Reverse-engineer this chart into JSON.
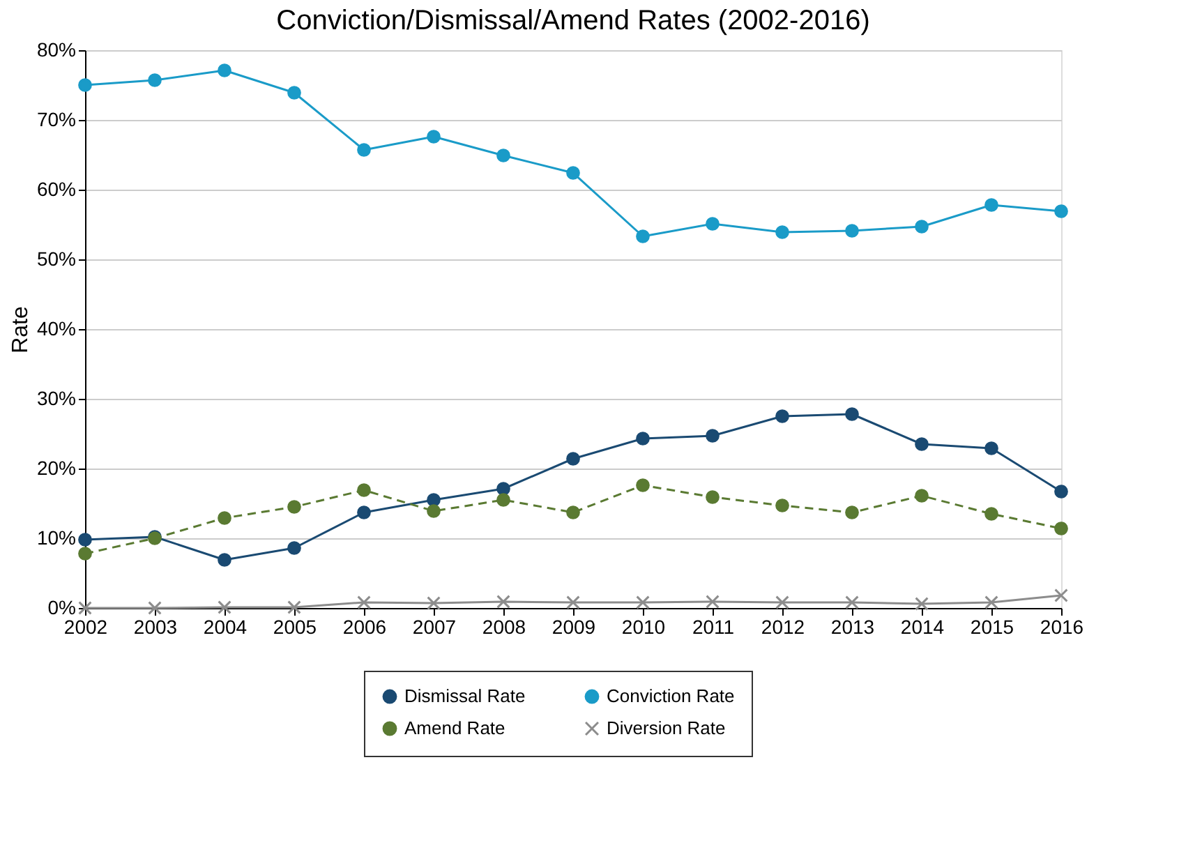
{
  "chart_data": {
    "type": "line",
    "title": "Conviction/Dismissal/Amend Rates (2002-2016)",
    "ylabel": "Rate",
    "x": [
      2002,
      2003,
      2004,
      2005,
      2006,
      2007,
      2008,
      2009,
      2010,
      2011,
      2012,
      2013,
      2014,
      2015,
      2016
    ],
    "xlim": [
      2002,
      2016
    ],
    "xticks": [
      2002,
      2003,
      2004,
      2005,
      2006,
      2007,
      2008,
      2009,
      2010,
      2011,
      2012,
      2013,
      2014,
      2015,
      2016
    ],
    "ylim": [
      0,
      80
    ],
    "yticks": [
      {
        "value": 0,
        "label": "0%"
      },
      {
        "value": 10,
        "label": "10%"
      },
      {
        "value": 20,
        "label": "20%"
      },
      {
        "value": 30,
        "label": "30%"
      },
      {
        "value": 40,
        "label": "40%"
      },
      {
        "value": 50,
        "label": "50%"
      },
      {
        "value": 60,
        "label": "60%"
      },
      {
        "value": 70,
        "label": "70%"
      },
      {
        "value": 80,
        "label": "80%"
      }
    ],
    "grid": "y",
    "legend": "bottom",
    "series": [
      {
        "name": "Dismissal Rate",
        "color": "#1a4a72",
        "marker": "circle",
        "line_style": "solid",
        "values": [
          9.8,
          10.2,
          6.9,
          8.6,
          13.7,
          15.5,
          17.1,
          21.4,
          24.3,
          24.7,
          27.5,
          27.8,
          23.5,
          22.9,
          16.7
        ]
      },
      {
        "name": "Amend Rate",
        "color": "#5a7a32",
        "marker": "circle",
        "line_style": "dashed",
        "values": [
          7.8,
          10.0,
          12.9,
          14.5,
          16.9,
          13.9,
          15.5,
          13.7,
          17.6,
          15.9,
          14.7,
          13.7,
          16.1,
          13.5,
          11.4
        ]
      },
      {
        "name": "Conviction Rate",
        "color": "#1a9bc8",
        "marker": "circle",
        "line_style": "solid",
        "values": [
          75.0,
          75.7,
          77.1,
          73.9,
          65.7,
          67.6,
          64.9,
          62.4,
          53.3,
          55.1,
          53.9,
          54.1,
          54.7,
          57.8,
          56.9
        ]
      },
      {
        "name": "Diversion Rate",
        "color": "#8c8c8c",
        "marker": "cross",
        "line_style": "solid",
        "values": [
          0.0,
          0.0,
          0.1,
          0.1,
          0.8,
          0.7,
          0.9,
          0.8,
          0.8,
          0.9,
          0.8,
          0.8,
          0.6,
          0.8,
          1.8
        ]
      }
    ]
  }
}
